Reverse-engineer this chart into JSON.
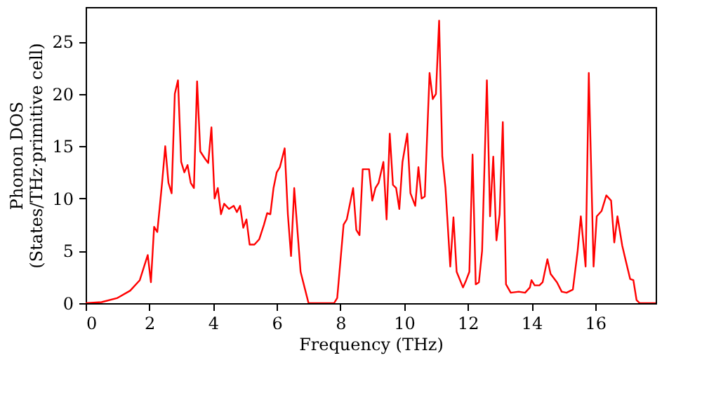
{
  "chart_data": {
    "type": "line",
    "xlabel": "Frequency (THz)",
    "ylabel": "Phonon DOS\n(States/THz·primitive cell)",
    "xlim": [
      0,
      17.9
    ],
    "ylim": [
      0,
      28.3
    ],
    "xticks": [
      0,
      2,
      4,
      6,
      8,
      10,
      12,
      14,
      16
    ],
    "yticks": [
      0,
      5,
      10,
      15,
      20,
      25
    ],
    "grid": false,
    "marker": "none",
    "line_style": "solid",
    "series": [
      {
        "color": "#ff0000",
        "x": [
          0,
          0.5,
          1.0,
          1.4,
          1.7,
          1.95,
          2.05,
          2.15,
          2.25,
          2.4,
          2.5,
          2.6,
          2.7,
          2.8,
          2.9,
          3.0,
          3.1,
          3.2,
          3.3,
          3.4,
          3.5,
          3.6,
          3.75,
          3.85,
          3.95,
          4.05,
          4.15,
          4.25,
          4.35,
          4.5,
          4.65,
          4.75,
          4.85,
          4.95,
          5.05,
          5.15,
          5.3,
          5.45,
          5.6,
          5.7,
          5.8,
          5.9,
          6.0,
          6.1,
          6.25,
          6.35,
          6.45,
          6.55,
          6.65,
          6.75,
          6.9,
          7.0,
          7.8,
          7.9,
          8.1,
          8.2,
          8.4,
          8.5,
          8.6,
          8.7,
          8.9,
          9.0,
          9.1,
          9.2,
          9.35,
          9.45,
          9.55,
          9.65,
          9.75,
          9.85,
          9.95,
          10.1,
          10.2,
          10.35,
          10.45,
          10.55,
          10.65,
          10.8,
          10.9,
          11.0,
          11.1,
          11.2,
          11.3,
          11.45,
          11.55,
          11.65,
          11.85,
          11.95,
          12.05,
          12.15,
          12.25,
          12.35,
          12.45,
          12.6,
          12.7,
          12.8,
          12.9,
          13.0,
          13.1,
          13.2,
          13.35,
          13.6,
          13.8,
          13.95,
          14.0,
          14.1,
          14.25,
          14.35,
          14.5,
          14.6,
          14.8,
          14.95,
          15.1,
          15.3,
          15.45,
          15.55,
          15.7,
          15.8,
          15.95,
          16.05,
          16.2,
          16.35,
          16.5,
          16.6,
          16.7,
          16.85,
          16.95,
          17.1,
          17.2,
          17.3,
          17.4,
          17.9
        ],
        "values": [
          0,
          0.1,
          0.5,
          1.2,
          2.2,
          4.6,
          2.0,
          7.3,
          6.8,
          11.5,
          15.0,
          11.5,
          10.5,
          20.0,
          21.3,
          13.5,
          12.5,
          13.2,
          11.5,
          11.0,
          21.2,
          14.5,
          13.8,
          13.4,
          16.8,
          10.0,
          11.0,
          8.5,
          9.5,
          9.0,
          9.3,
          8.7,
          9.3,
          7.2,
          8.0,
          5.6,
          5.6,
          6.1,
          7.5,
          8.6,
          8.5,
          11.0,
          12.5,
          13.0,
          14.8,
          8.5,
          4.5,
          11.0,
          7.0,
          3.0,
          1.2,
          0,
          0,
          0.5,
          7.5,
          8.0,
          11.0,
          7.0,
          6.5,
          12.8,
          12.8,
          9.8,
          11.0,
          11.5,
          13.5,
          8.0,
          16.2,
          11.3,
          11.0,
          9.0,
          13.5,
          16.2,
          10.5,
          9.3,
          13.0,
          10.0,
          10.2,
          22.0,
          19.5,
          20.0,
          27.0,
          14.0,
          11.0,
          3.5,
          8.2,
          3.0,
          1.5,
          2.2,
          3.0,
          14.2,
          1.8,
          2.0,
          5.0,
          21.3,
          8.3,
          14.0,
          6.0,
          8.5,
          17.3,
          1.8,
          1.0,
          1.1,
          1.0,
          1.5,
          2.2,
          1.7,
          1.7,
          2.0,
          4.2,
          2.8,
          2.0,
          1.1,
          1.0,
          1.3,
          5.0,
          8.3,
          3.5,
          22.0,
          3.5,
          8.3,
          8.8,
          10.3,
          9.8,
          5.8,
          8.3,
          5.5,
          4.2,
          2.3,
          2.2,
          0.3,
          0,
          0
        ]
      }
    ]
  }
}
